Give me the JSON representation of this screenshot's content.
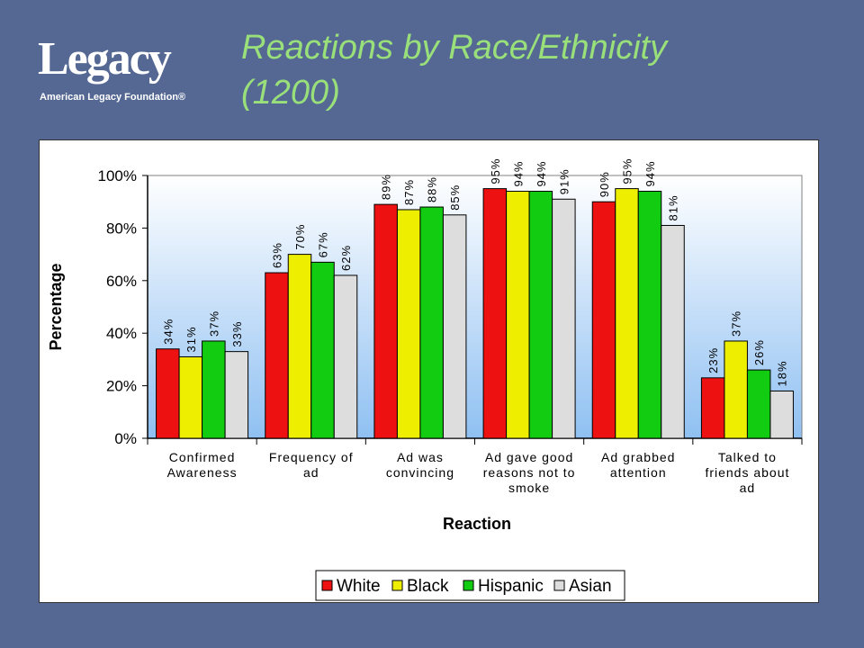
{
  "logo": {
    "word": "Legacy",
    "subtitle": "American Legacy Foundation®"
  },
  "slide": {
    "title_line1": "Reactions by Race/Ethnicity",
    "title_line2": "(1200)"
  },
  "colors": {
    "background": "#556893",
    "title": "#99e07a",
    "White": "#ee1111",
    "Black": "#eeee00",
    "Hispanic": "#11cc11",
    "Asian": "#dddddd"
  },
  "chart_data": {
    "type": "bar",
    "title": "",
    "xlabel": "Reaction",
    "ylabel": "Percentage",
    "ylim": [
      0,
      100
    ],
    "yticks": [
      "0%",
      "20%",
      "40%",
      "60%",
      "80%",
      "100%"
    ],
    "grid": false,
    "legend_position": "bottom",
    "categories": [
      [
        "Confirmed",
        "Awareness"
      ],
      [
        "Frequency of",
        "ad"
      ],
      [
        "Ad was",
        "convincing"
      ],
      [
        "Ad gave good",
        "reasons not to",
        "smoke"
      ],
      [
        "Ad grabbed",
        "attention"
      ],
      [
        "Talked to",
        "friends about",
        "ad"
      ]
    ],
    "series": [
      {
        "name": "White",
        "values": [
          34,
          63,
          89,
          95,
          90,
          23
        ]
      },
      {
        "name": "Black",
        "values": [
          31,
          70,
          87,
          94,
          95,
          37
        ]
      },
      {
        "name": "Hispanic",
        "values": [
          37,
          67,
          88,
          94,
          94,
          26
        ]
      },
      {
        "name": "Asian",
        "values": [
          33,
          62,
          85,
          91,
          81,
          18
        ]
      }
    ]
  }
}
